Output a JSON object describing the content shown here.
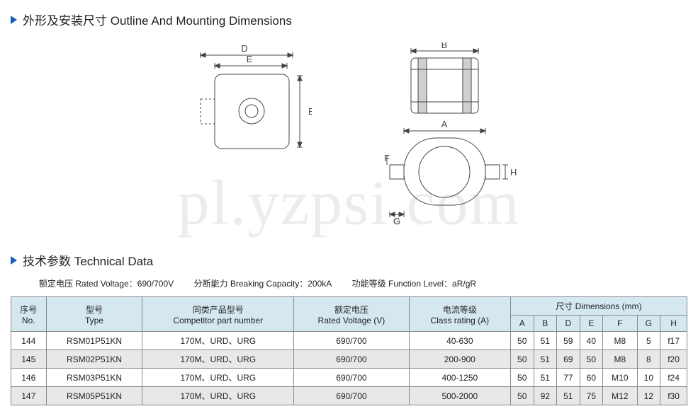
{
  "section1": {
    "cn": "外形及安装尺寸",
    "en": "Outline And Mounting Dimensions"
  },
  "section2": {
    "cn": "技术参数",
    "en": "Technical  Data"
  },
  "diagram": {
    "labels": {
      "A": "A",
      "B": "B",
      "D": "D",
      "E": "E",
      "F": "F",
      "G": "G",
      "H": "H"
    }
  },
  "rating": {
    "volt_cn": "额定电压",
    "volt_en": "Rated Voltage：",
    "volt_val": "690/700V",
    "break_cn": "分断能力",
    "break_en": "Breaking Capacity：",
    "break_val": "200kA",
    "func_cn": "功能等级",
    "func_en": "Function Level：",
    "func_val": "aR/gR"
  },
  "headers": {
    "no_cn": "序号",
    "no_en": "No.",
    "type_cn": "型号",
    "type_en": "Type",
    "comp_cn": "同类产品型号",
    "comp_en": "Competitor part number",
    "rv_cn": "额定电压",
    "rv_en": "Rated Voltage (V)",
    "cr_cn": "电流等级",
    "cr_en": "Class rating (A)",
    "dim_cn": "尺寸",
    "dim_en": "Dimensions (mm)",
    "A": "A",
    "B": "B",
    "D": "D",
    "E": "E",
    "F": "F",
    "G": "G",
    "H": "H"
  },
  "rows": [
    {
      "no": "144",
      "type": "RSM01P51KN",
      "comp": "170M、URD、URG",
      "rv": "690/700",
      "cr": "40-630",
      "A": "50",
      "B": "51",
      "D": "59",
      "E": "40",
      "F": "M8",
      "G": "5",
      "H": "f17"
    },
    {
      "no": "145",
      "type": "RSM02P51KN",
      "comp": "170M、URD、URG",
      "rv": "690/700",
      "cr": "200-900",
      "A": "50",
      "B": "51",
      "D": "69",
      "E": "50",
      "F": "M8",
      "G": "8",
      "H": "f20"
    },
    {
      "no": "146",
      "type": "RSM03P51KN",
      "comp": "170M、URD、URG",
      "rv": "690/700",
      "cr": "400-1250",
      "A": "50",
      "B": "51",
      "D": "77",
      "E": "60",
      "F": "M10",
      "G": "10",
      "H": "f24"
    },
    {
      "no": "147",
      "type": "RSM05P51KN",
      "comp": "170M、URD、URG",
      "rv": "690/700",
      "cr": "500-2000",
      "A": "50",
      "B": "92",
      "D": "51",
      "E": "75",
      "F": "M12",
      "G": "12",
      "H": "f30"
    }
  ],
  "watermark": "pl.yzpsi.com",
  "colors": {
    "accent": "#1a5fb4",
    "th_bg": "#d5e8f0",
    "alt_bg": "#e8e8e8",
    "line": "#444"
  }
}
